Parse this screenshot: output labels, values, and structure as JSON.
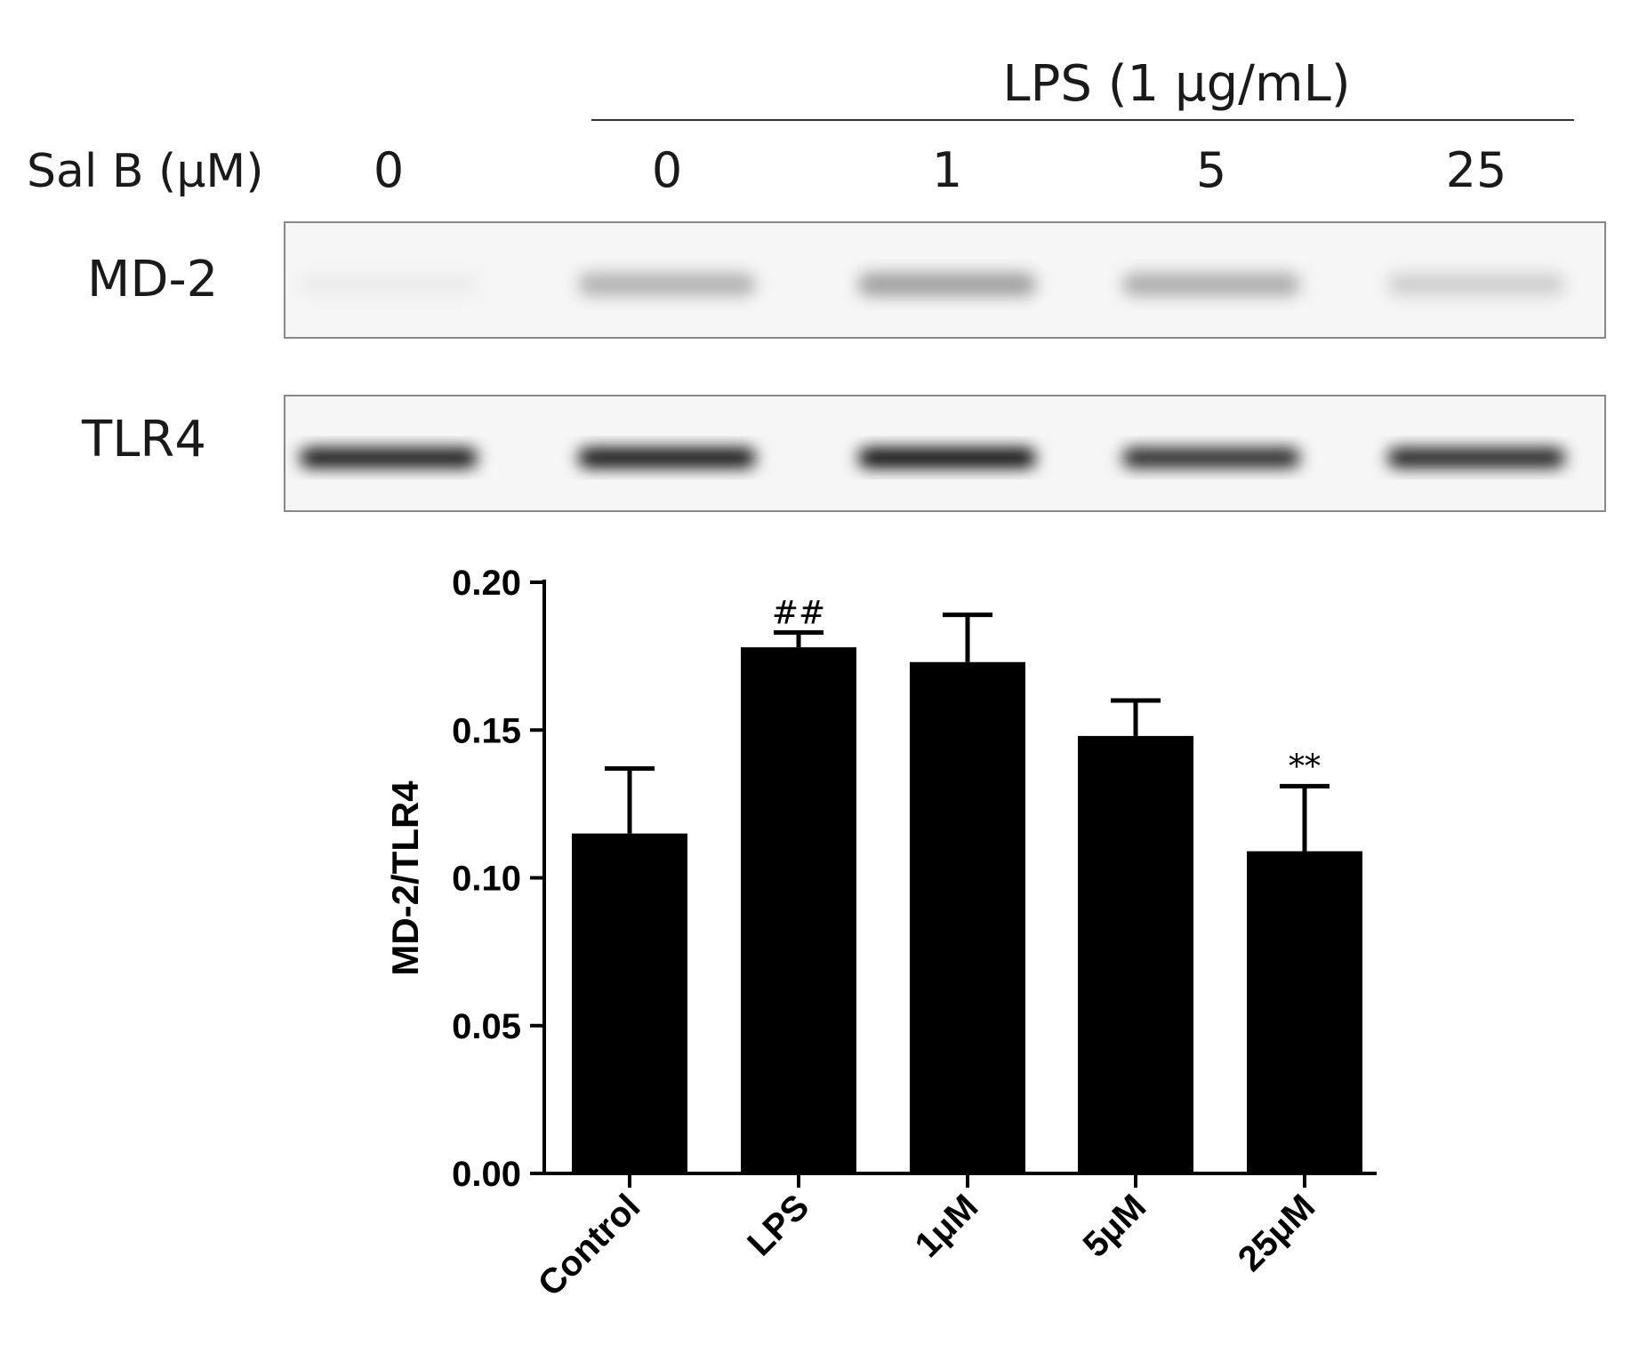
{
  "blot": {
    "treatment_label": "LPS (1 μg/mL)",
    "dose_label": "Sal B (μM)",
    "doses": [
      "0",
      "0",
      "1",
      "5",
      "25"
    ],
    "rows": [
      {
        "label": "MD-2",
        "intensity": [
          0.04,
          0.28,
          0.36,
          0.3,
          0.16
        ]
      },
      {
        "label": "TLR4",
        "intensity": [
          0.95,
          0.97,
          1.0,
          0.88,
          0.9
        ]
      }
    ]
  },
  "chart_data": {
    "type": "bar",
    "title": "",
    "xlabel": "",
    "ylabel": "MD-2/TLR4",
    "categories": [
      "Control",
      "LPS",
      "1μM",
      "5μM",
      "25μM"
    ],
    "values": [
      0.115,
      0.178,
      0.173,
      0.148,
      0.109
    ],
    "errors": [
      0.022,
      0.005,
      0.016,
      0.012,
      0.022
    ],
    "annotations": [
      "",
      "##",
      "",
      "",
      "**"
    ],
    "ylim": [
      0,
      0.2
    ],
    "yticks": [
      "0.00",
      "0.05",
      "0.10",
      "0.15",
      "0.20"
    ],
    "bar_color": "#000000",
    "grid": false,
    "legend": "none"
  }
}
